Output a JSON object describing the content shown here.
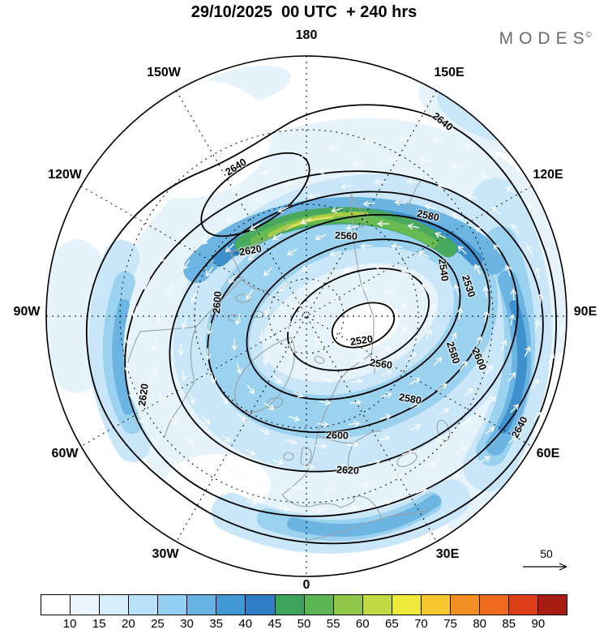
{
  "header": {
    "title": "29/10/2025  00 UTC  + 240 hrs",
    "brand": "MODES",
    "brand_mark": "©"
  },
  "map": {
    "lon_labels": [
      "180",
      "150W",
      "150E",
      "120W",
      "120E",
      "90W",
      "90E",
      "60W",
      "60E",
      "30W",
      "30E",
      "0"
    ],
    "contour_labels": [
      "2640",
      "2640",
      "2580",
      "2560",
      "2620",
      "2540",
      "2530",
      "2600",
      "2520",
      "2560",
      "2580",
      "2600",
      "2620",
      "2580",
      "2600",
      "2640",
      "2620"
    ]
  },
  "legend": {
    "reference_value": "50"
  },
  "colorbar": {
    "tick_labels": [
      "10",
      "15",
      "20",
      "25",
      "30",
      "35",
      "40",
      "45",
      "50",
      "55",
      "60",
      "65",
      "70",
      "75",
      "80",
      "85",
      "90"
    ],
    "colors": [
      "#ffffff",
      "#ecf7fd",
      "#d6edfb",
      "#b9e1f7",
      "#93cff0",
      "#68b4e4",
      "#429ad4",
      "#2d7ec4",
      "#3ea45c",
      "#5cb553",
      "#8fc74a",
      "#c2da41",
      "#efe93b",
      "#f6c72f",
      "#f28f24",
      "#ee6c1d",
      "#dc3f17",
      "#a81d12"
    ]
  },
  "chart_data": {
    "type": "contour_map",
    "title": "29/10/2025  00 UTC  + 240 hrs",
    "projection": "north polar stereographic, 0 longitude at bottom, 180 at top",
    "longitude_ring_labels": [
      "180",
      "150W",
      "150E",
      "120W",
      "120E",
      "90W",
      "90E",
      "60W",
      "60E",
      "30W",
      "30E",
      "0"
    ],
    "contour_labels_visible": [
      2520,
      2530,
      2540,
      2560,
      2580,
      2600,
      2620,
      2640
    ],
    "contour_interval_main": 20,
    "contour_min_at_vortex_center": 2520,
    "contour_max_outer": 2640,
    "closed_low_center_labels": [
      "2520"
    ],
    "secondary_closed_high_label": "2640",
    "shading_scale_ticks": [
      10,
      15,
      20,
      25,
      30,
      35,
      40,
      45,
      50,
      55,
      60,
      65,
      70,
      75,
      80,
      85,
      90
    ],
    "shading_palette": [
      "#ffffff",
      "#ecf7fd",
      "#d6edfb",
      "#b9e1f7",
      "#93cff0",
      "#68b4e4",
      "#429ad4",
      "#2d7ec4",
      "#3ea45c",
      "#5cb553",
      "#8fc74a",
      "#c2da41",
      "#efe93b",
      "#f6c72f",
      "#f28f24",
      "#ee6c1d",
      "#dc3f17",
      "#a81d12"
    ],
    "jet_max_band_colors_on_map": [
      "green",
      "yellow-green"
    ],
    "reference_arrow_value": 50,
    "branding": "MODES©",
    "legend_position": "bottom horizontal colorbar",
    "grid": "dashed latitude circles and 30-degree meridians"
  }
}
